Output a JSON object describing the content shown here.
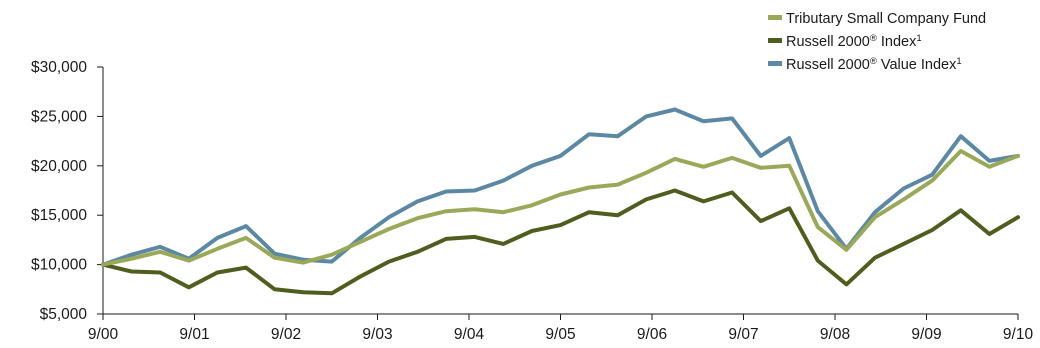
{
  "chart_data": {
    "type": "line",
    "title": "",
    "xlabel": "",
    "ylabel": "",
    "x_ticks": [
      "9/00",
      "9/01",
      "9/02",
      "9/03",
      "9/04",
      "9/05",
      "9/06",
      "9/07",
      "9/08",
      "9/09",
      "9/10"
    ],
    "y_ticks": [
      "$5,000",
      "$10,000",
      "$15,000",
      "$20,000",
      "$25,000",
      "$30,000"
    ],
    "ylim": [
      5000,
      30000
    ],
    "x_range": [
      "2000-09",
      "2010-09"
    ],
    "x_step": "quarterly",
    "grid": false,
    "legend_position": "top-right",
    "colors": {
      "fund": "#9aa85a",
      "r2000": "#4f5d1f",
      "r2000v": "#5c88a4"
    },
    "legend": [
      {
        "key": "fund",
        "name": "Tributary Small Company Fund",
        "mark": ""
      },
      {
        "key": "r2000",
        "name": "Russell 2000",
        "mark": "®",
        "suffix": " Index",
        "note": "1"
      },
      {
        "key": "r2000v",
        "name": "Russell 2000",
        "mark": "®",
        "suffix": " Value Index",
        "note": "1"
      }
    ],
    "series": [
      {
        "key": "fund",
        "name": "Tributary Small Company Fund",
        "values": [
          10000,
          10600,
          11300,
          10400,
          11600,
          12700,
          10700,
          10200,
          11000,
          12300,
          13600,
          14700,
          15400,
          15600,
          15300,
          16000,
          17100,
          17800,
          18100,
          19300,
          20700,
          19900,
          20800,
          19800,
          20000,
          13800,
          11500,
          14800,
          16600,
          18500,
          21500,
          19900,
          21000
        ]
      },
      {
        "key": "r2000",
        "name": "Russell 2000 Index",
        "values": [
          10000,
          9300,
          9200,
          7700,
          9200,
          9700,
          7500,
          7200,
          7100,
          8800,
          10300,
          11300,
          12600,
          12800,
          12100,
          13400,
          14000,
          15300,
          15000,
          16600,
          17500,
          16400,
          17300,
          14400,
          15700,
          10400,
          8000,
          10700,
          12100,
          13500,
          15500,
          13100,
          14800
        ]
      },
      {
        "key": "r2000v",
        "name": "Russell 2000 Value Index",
        "values": [
          10000,
          11000,
          11800,
          10600,
          12700,
          13900,
          11100,
          10500,
          10300,
          12700,
          14800,
          16400,
          17400,
          17500,
          18500,
          20000,
          21000,
          23200,
          23000,
          25000,
          25700,
          24500,
          24800,
          21000,
          22800,
          15400,
          11600,
          15300,
          17700,
          19100,
          23000,
          20500,
          21000
        ]
      }
    ]
  }
}
